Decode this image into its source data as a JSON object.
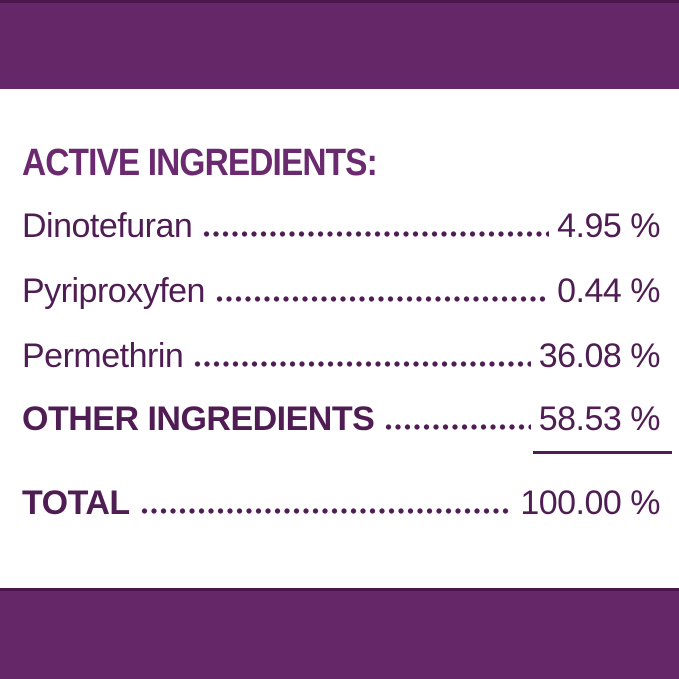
{
  "label_panel": {
    "heading": "ACTIVE INGREDIENTS:",
    "rows": [
      {
        "label": "Dinotefuran",
        "value": "4.95 %"
      },
      {
        "label": "Pyriproxyfen",
        "value": "0.44 %"
      },
      {
        "label": "Permethrin",
        "value": "36.08 %"
      },
      {
        "label": "OTHER INGREDIENTS",
        "value": "58.53 %"
      },
      {
        "label": "TOTAL",
        "value": "100.00 %"
      }
    ]
  },
  "colors": {
    "band_purple": "#662769",
    "band_edge": "#4c164e",
    "heading_purple": "#6b2a70",
    "text_purple": "#4f1d53",
    "background": "#ffffff"
  }
}
